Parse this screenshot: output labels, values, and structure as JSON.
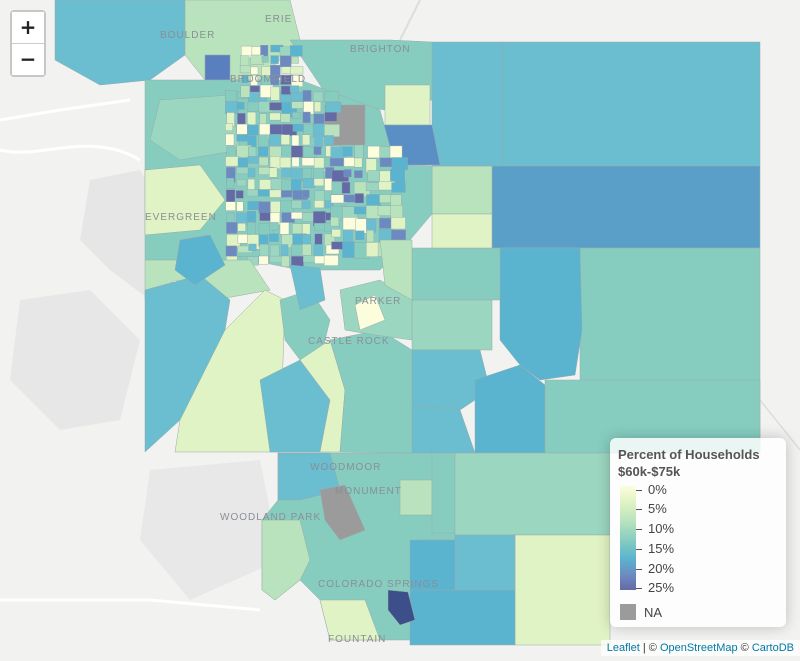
{
  "map": {
    "place_labels": [
      "BOULDER",
      "ERIE",
      "BROOMFIELD",
      "BRIGHTON",
      "EVERGREEN",
      "PARKER",
      "CASTLE ROCK",
      "WOODMOOR",
      "MONUMENT",
      "WOODLAND PARK",
      "COLORADO SPRINGS",
      "FOUNTAIN"
    ],
    "na_color": "#9b9b9b",
    "colors": {
      "pct_0": "#fbfddc",
      "pct_5": "#e0f3c4",
      "pct_10": "#b8e3bd",
      "pct_12": "#9bd6c0",
      "pct_15": "#86cdc0",
      "pct_17": "#6bbdd0",
      "pct_20": "#5ab3cf",
      "pct_22": "#6d8ac0",
      "pct_25": "#646aa6"
    }
  },
  "zoom": {
    "in_label": "+",
    "out_label": "−"
  },
  "legend": {
    "title_line1": "Percent of Households",
    "title_line2": "$60k-$75k",
    "ticks": [
      "0%",
      "5%",
      "10%",
      "15%",
      "20%",
      "25%"
    ],
    "na_label": "NA"
  },
  "attribution": {
    "leaflet": "Leaflet",
    "sep1": " | © ",
    "osm": "OpenStreetMap",
    "sep2": " © ",
    "carto": "CartoDB"
  }
}
